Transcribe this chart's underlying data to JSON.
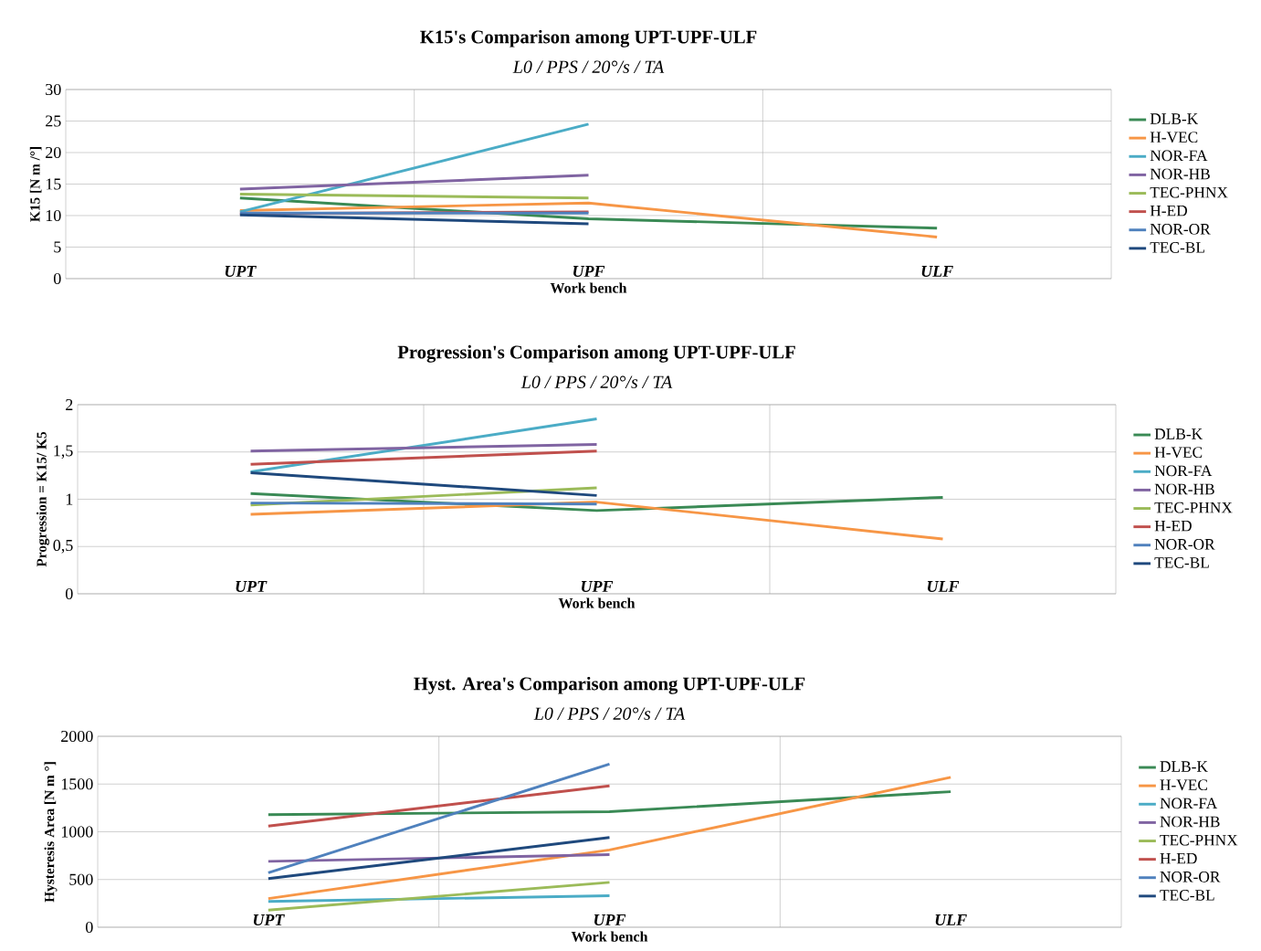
{
  "chart_data": [
    {
      "type": "line",
      "title": "K15's Comparison among UPT-UPF-ULF",
      "subtitle": "L0 / PPS / 20°/s / TA",
      "xlabel": "Work bench",
      "ylabel": "K15 [N m /°]",
      "categories": [
        "UPT",
        "UPF",
        "ULF"
      ],
      "ylim": [
        0,
        30
      ],
      "yticks": [
        0,
        5,
        10,
        15,
        20,
        25,
        30
      ],
      "grid": true,
      "legend": "right",
      "series": [
        {
          "name": "DLB-K",
          "color": "#3a8a55",
          "values": [
            12.8,
            9.5,
            8.0
          ]
        },
        {
          "name": "H-VEC",
          "color": "#f79646",
          "values": [
            10.8,
            12.0,
            6.6
          ]
        },
        {
          "name": "NOR-FA",
          "color": "#4bacc6",
          "values": [
            10.6,
            24.5,
            null
          ]
        },
        {
          "name": "NOR-HB",
          "color": "#8064a2",
          "values": [
            14.2,
            16.4,
            null
          ]
        },
        {
          "name": "TEC-PHNX",
          "color": "#9bbb59",
          "values": [
            13.4,
            12.8,
            null
          ]
        },
        {
          "name": "H-ED",
          "color": "#c0504d",
          "values": [
            10.3,
            10.6,
            null
          ]
        },
        {
          "name": "NOR-OR",
          "color": "#4f81bd",
          "values": [
            10.4,
            10.4,
            null
          ]
        },
        {
          "name": "TEC-BL",
          "color": "#1f497d",
          "values": [
            10.1,
            8.7,
            null
          ]
        }
      ]
    },
    {
      "type": "line",
      "title": "Progression's Comparison among UPT-UPF-ULF",
      "subtitle": "L0 / PPS / 20°/s / TA",
      "xlabel": "Work bench",
      "ylabel": "Progression = K15/ K5",
      "categories": [
        "UPT",
        "UPF",
        "ULF"
      ],
      "ylim": [
        0,
        2
      ],
      "yticks": [
        0,
        {
          "value": 0.5,
          "label": "0,5"
        },
        1,
        {
          "value": 1.5,
          "label": "1,5"
        },
        2
      ],
      "grid": true,
      "legend": "right",
      "series": [
        {
          "name": "DLB-K",
          "color": "#3a8a55",
          "values": [
            1.06,
            0.88,
            1.02
          ]
        },
        {
          "name": "H-VEC",
          "color": "#f79646",
          "values": [
            0.84,
            0.97,
            0.58
          ]
        },
        {
          "name": "NOR-FA",
          "color": "#4bacc6",
          "values": [
            1.29,
            1.85,
            null
          ]
        },
        {
          "name": "NOR-HB",
          "color": "#8064a2",
          "values": [
            1.51,
            1.58,
            null
          ]
        },
        {
          "name": "TEC-PHNX",
          "color": "#9bbb59",
          "values": [
            0.94,
            1.12,
            null
          ]
        },
        {
          "name": "H-ED",
          "color": "#c0504d",
          "values": [
            1.37,
            1.51,
            null
          ]
        },
        {
          "name": "NOR-OR",
          "color": "#4f81bd",
          "values": [
            0.96,
            0.95,
            null
          ]
        },
        {
          "name": "TEC-BL",
          "color": "#1f497d",
          "values": [
            1.28,
            1.04,
            null
          ]
        }
      ]
    },
    {
      "type": "line",
      "title": "Hyst. Area's Comparison among UPT-UPF-ULF",
      "subtitle": "L0 / PPS / 20°/s / TA",
      "xlabel": "Work bench",
      "ylabel": "Hysteresis Area [N m °]",
      "categories": [
        "UPT",
        "UPF",
        "ULF"
      ],
      "ylim": [
        0,
        2000
      ],
      "yticks": [
        0,
        500,
        1000,
        1500,
        2000
      ],
      "grid": true,
      "legend": "right",
      "series": [
        {
          "name": "DLB-K",
          "color": "#3a8a55",
          "values": [
            1180,
            1210,
            1420
          ]
        },
        {
          "name": "H-VEC",
          "color": "#f79646",
          "values": [
            300,
            810,
            1570
          ]
        },
        {
          "name": "NOR-FA",
          "color": "#4bacc6",
          "values": [
            270,
            330,
            null
          ]
        },
        {
          "name": "NOR-HB",
          "color": "#8064a2",
          "values": [
            690,
            760,
            null
          ]
        },
        {
          "name": "TEC-PHNX",
          "color": "#9bbb59",
          "values": [
            180,
            470,
            null
          ]
        },
        {
          "name": "H-ED",
          "color": "#c0504d",
          "values": [
            1060,
            1480,
            null
          ]
        },
        {
          "name": "NOR-OR",
          "color": "#4f81bd",
          "values": [
            570,
            1710,
            null
          ]
        },
        {
          "name": "TEC-BL",
          "color": "#1f497d",
          "values": [
            510,
            940,
            null
          ]
        }
      ]
    }
  ]
}
